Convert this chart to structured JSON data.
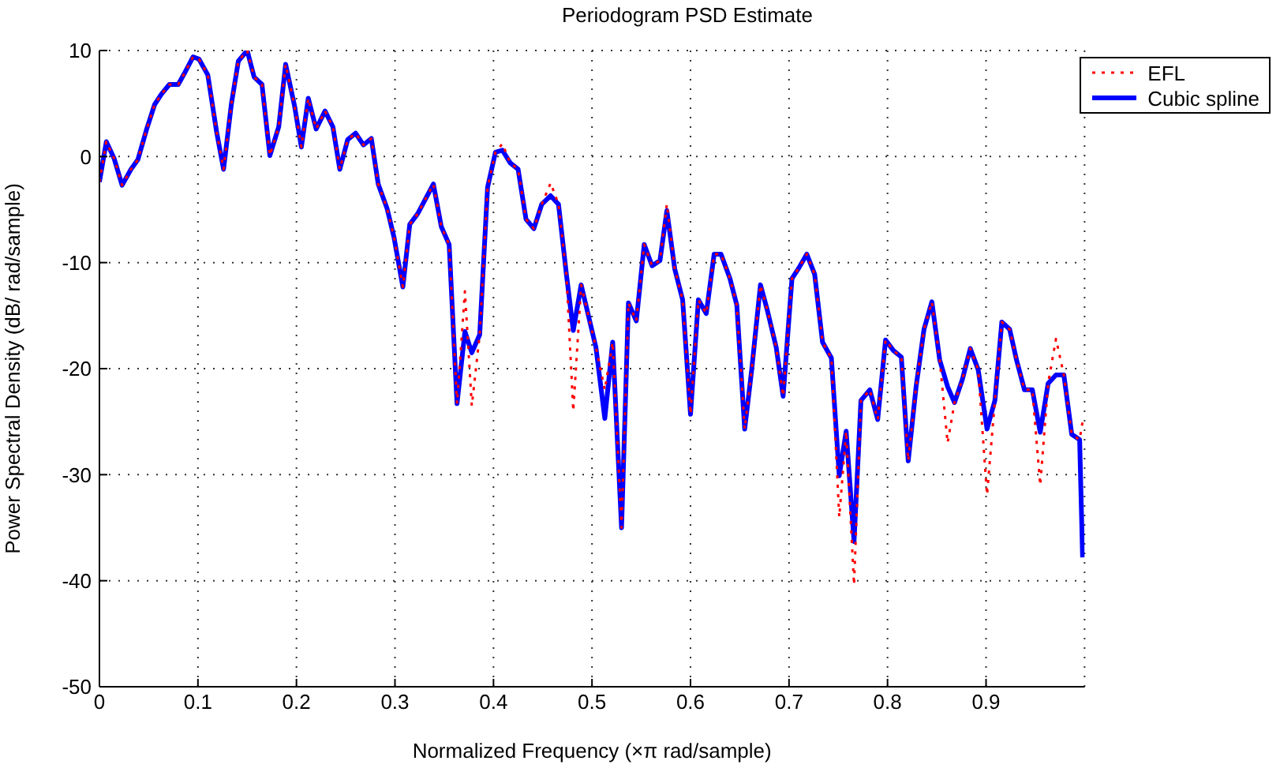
{
  "chart_data": {
    "type": "line",
    "title": "Periodogram PSD Estimate",
    "xlabel": "Normalized Frequency  (×π rad/sample)",
    "ylabel": "Power Spectral Density (dB/ rad/sample)",
    "x": [
      0,
      0.007,
      0.015,
      0.023,
      0.032,
      0.039,
      0.048,
      0.056,
      0.063,
      0.071,
      0.08,
      0.086,
      0.095,
      0.101,
      0.11,
      0.119,
      0.126,
      0.134,
      0.141,
      0.15,
      0.157,
      0.165,
      0.173,
      0.182,
      0.189,
      0.198,
      0.205,
      0.212,
      0.22,
      0.229,
      0.237,
      0.244,
      0.252,
      0.26,
      0.268,
      0.276,
      0.283,
      0.292,
      0.299,
      0.308,
      0.315,
      0.323,
      0.339,
      0.347,
      0.355,
      0.363,
      0.371,
      0.378,
      0.386,
      0.394,
      0.402,
      0.409,
      0.417,
      0.425,
      0.433,
      0.441,
      0.449,
      0.458,
      0.466,
      0.474,
      0.481,
      0.489,
      0.504,
      0.513,
      0.521,
      0.53,
      0.537,
      0.545,
      0.553,
      0.561,
      0.569,
      0.576,
      0.584,
      0.592,
      0.6,
      0.608,
      0.616,
      0.624,
      0.631,
      0.64,
      0.647,
      0.655,
      0.662,
      0.671,
      0.678,
      0.687,
      0.694,
      0.703,
      0.71,
      0.718,
      0.726,
      0.734,
      0.743,
      0.751,
      0.758,
      0.766,
      0.773,
      0.782,
      0.79,
      0.798,
      0.806,
      0.814,
      0.821,
      0.829,
      0.837,
      0.845,
      0.853,
      0.861,
      0.868,
      0.876,
      0.884,
      0.892,
      0.901,
      0.909,
      0.916,
      0.924,
      0.931,
      0.939,
      0.947,
      0.955,
      0.963,
      0.971,
      0.979,
      0.987,
      0.995,
      0.998
    ],
    "series": [
      {
        "name": "EFL",
        "color": "#ff0000",
        "line_style": "dotted",
        "values": [
          -2.4,
          1.4,
          -0.2,
          -2.7,
          -1.2,
          -0.3,
          2.6,
          4.9,
          5.9,
          6.8,
          6.8,
          7.8,
          9.4,
          9.2,
          7.7,
          2.3,
          -1.2,
          5,
          9,
          10,
          7.5,
          6.8,
          0.1,
          2.8,
          8.7,
          4.8,
          0.9,
          5.5,
          2.6,
          4.3,
          2.8,
          -1.2,
          1.6,
          2.2,
          1.1,
          1.7,
          -2.6,
          -4.9,
          -7.6,
          -12.3,
          -6.4,
          -5.4,
          -2.6,
          -6.6,
          -8.3,
          -23.3,
          -12.7,
          -23.5,
          -16.8,
          -2.9,
          0.4,
          1.2,
          -0.6,
          -1.2,
          -5.9,
          -6.8,
          -4.5,
          -2.5,
          -4.5,
          -11.1,
          -24,
          -12.1,
          -18,
          -22,
          -17.5,
          -35,
          -13.8,
          -15.5,
          -8.3,
          -10.3,
          -9.8,
          -4.5,
          -10.6,
          -13.5,
          -24.3,
          -13.5,
          -14.8,
          -9.2,
          -9.2,
          -11.5,
          -14,
          -25.7,
          -20.2,
          -12.1,
          -14.5,
          -18,
          -22.6,
          -11.5,
          -10.5,
          -9.2,
          -11.1,
          -17.5,
          -19,
          -34,
          -25.9,
          -40.4,
          -23,
          -22,
          -24.8,
          -17.3,
          -18.3,
          -18.9,
          -28.7,
          -21.7,
          -16.3,
          -13.7,
          -19.2,
          -27,
          -23.2,
          -21,
          -18.1,
          -20.1,
          -31.9,
          -23,
          -15.6,
          -16.3,
          -19.2,
          -22,
          -22,
          -31,
          -21.4,
          -17.2,
          -20.6,
          -26.2,
          -26.7,
          -25
        ]
      },
      {
        "name": "Cubic spline",
        "color": "#0000ff",
        "line_style": "solid",
        "values": [
          -2.4,
          1.4,
          -0.2,
          -2.7,
          -1.2,
          -0.3,
          2.6,
          4.9,
          5.9,
          6.8,
          6.8,
          7.8,
          9.4,
          9.2,
          7.7,
          2.3,
          -1.2,
          5,
          9,
          10,
          7.5,
          6.8,
          0.1,
          2.8,
          8.7,
          4.8,
          0.9,
          5.5,
          2.6,
          4.3,
          2.8,
          -1.2,
          1.6,
          2.2,
          1.1,
          1.7,
          -2.6,
          -4.9,
          -7.6,
          -12.3,
          -6.4,
          -5.4,
          -2.6,
          -6.6,
          -8.3,
          -23.3,
          -16.5,
          -18.5,
          -16.8,
          -2.9,
          0.4,
          0.6,
          -0.6,
          -1.2,
          -5.9,
          -6.8,
          -4.5,
          -3.7,
          -4.5,
          -11.1,
          -16.4,
          -12.1,
          -18,
          -24.7,
          -17.5,
          -35,
          -13.8,
          -15.5,
          -8.3,
          -10.3,
          -9.8,
          -5.1,
          -10.6,
          -13.5,
          -24.3,
          -13.5,
          -14.8,
          -9.2,
          -9.2,
          -11.5,
          -14,
          -25.7,
          -20.2,
          -12.1,
          -14.5,
          -18,
          -22.6,
          -11.5,
          -10.5,
          -9.2,
          -11.1,
          -17.5,
          -19,
          -30.1,
          -25.9,
          -36.3,
          -23,
          -22,
          -24.8,
          -17.3,
          -18.3,
          -18.9,
          -28.7,
          -21.7,
          -16.3,
          -13.7,
          -19.2,
          -21.7,
          -23.2,
          -21,
          -18.1,
          -20.1,
          -25.7,
          -23,
          -15.6,
          -16.3,
          -19.2,
          -22,
          -22,
          -26,
          -21.4,
          -20.6,
          -20.6,
          -26.2,
          -26.7,
          -37.8
        ]
      }
    ],
    "xlim": [
      0,
      1
    ],
    "xticks": [
      0,
      0.1,
      0.2,
      0.3,
      0.4,
      0.5,
      0.6,
      0.7,
      0.8,
      0.9
    ],
    "ylim": [
      -50,
      10
    ],
    "yticks": [
      -50,
      -40,
      -30,
      -20,
      -10,
      0,
      10
    ],
    "grid": true,
    "legend": "top right",
    "marker": "none"
  }
}
